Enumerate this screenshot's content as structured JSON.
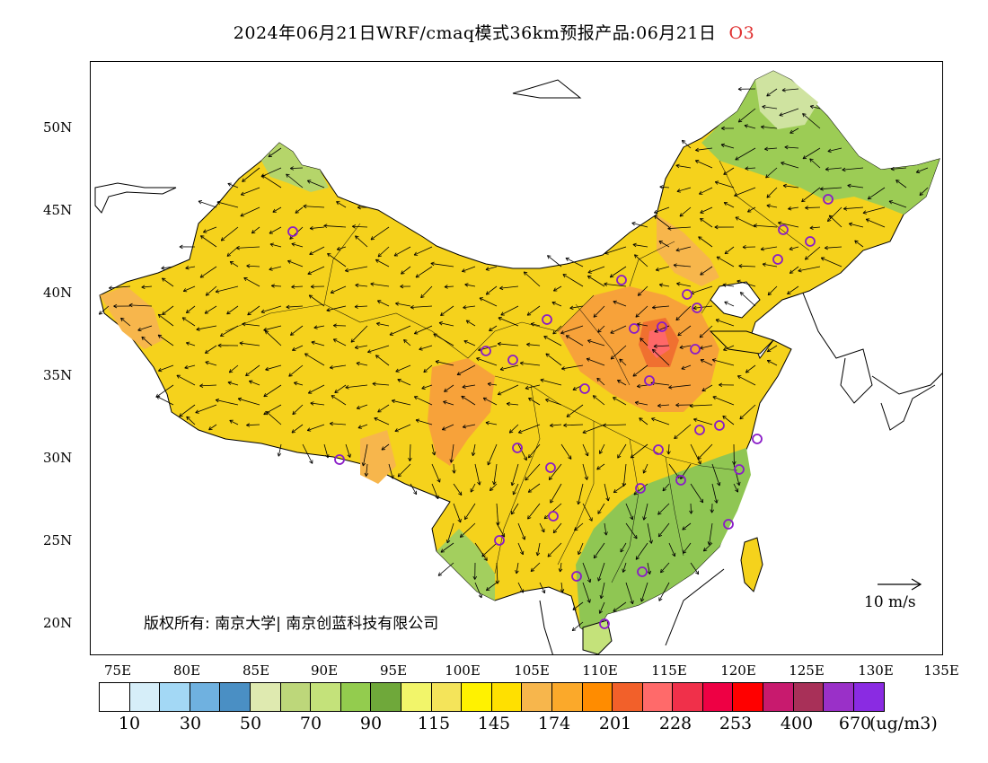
{
  "title": {
    "main": "2024年06月21日WRF/cmaq模式36km预报产品:06月21日",
    "species": "O3"
  },
  "map": {
    "lat_labels": [
      "50N",
      "45N",
      "40N",
      "35N",
      "30N",
      "25N",
      "20N"
    ],
    "lon_labels": [
      "75E",
      "80E",
      "85E",
      "90E",
      "95E",
      "100E",
      "105E",
      "110E",
      "115E",
      "120E",
      "125E",
      "130E",
      "135E"
    ],
    "copyright": "版权所有: 南京大学| 南京创蓝科技有限公司",
    "reference_vector": "10 m/s",
    "station_marker_color": "#8a1cc8",
    "wind_arrow_color": "#000000"
  },
  "colorbar": {
    "colors": [
      "#ffffff",
      "#d6eef9",
      "#a3d8f5",
      "#6fb1e0",
      "#4a8fc4",
      "#dfeab0",
      "#bdd77a",
      "#c4e27a",
      "#93cc4e",
      "#6fa83a",
      "#f2f56a",
      "#f4e45a",
      "#fff200",
      "#ffe000",
      "#f7b64c",
      "#fba92a",
      "#ff8c00",
      "#f2602a",
      "#ff6a6a",
      "#f0304a",
      "#ee0044",
      "#ff0000",
      "#c81a6e",
      "#a83058",
      "#9a30c8",
      "#8a2be2"
    ],
    "labels": [
      "10",
      "30",
      "50",
      "70",
      "90",
      "115",
      "145",
      "174",
      "201",
      "228",
      "253",
      "400",
      "670"
    ],
    "unit": "(ug/m3)"
  }
}
